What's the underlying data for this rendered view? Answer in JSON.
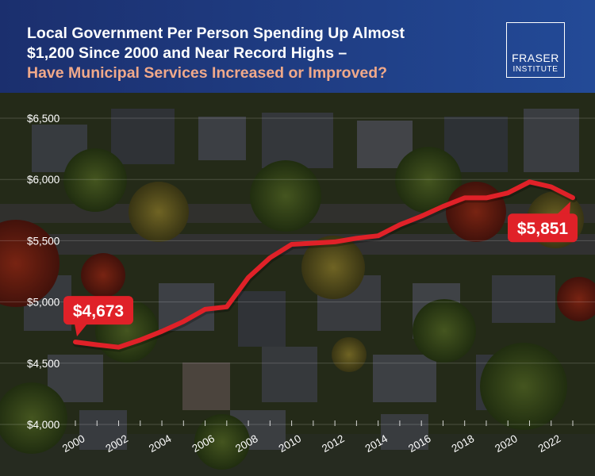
{
  "header": {
    "title_line1": "Local Government Per Person Spending Up Almost",
    "title_line2": "$1,200 Since 2000 and Near Record Highs –",
    "title_line3": "Have Municipal Services Increased or Improved?",
    "accent_color": "#f0a98a",
    "background_color": "#1f3c84"
  },
  "logo": {
    "line1": "FRASER",
    "line2": "INSTITUTE"
  },
  "chart_data": {
    "type": "line",
    "title": "",
    "xlabel": "",
    "ylabel": "",
    "ylim": [
      4000,
      6500
    ],
    "xlim": [
      2000,
      2023
    ],
    "y_ticks": [
      {
        "value": 4000,
        "label": "$4,000"
      },
      {
        "value": 4500,
        "label": "$4,500"
      },
      {
        "value": 5000,
        "label": "$5,000"
      },
      {
        "value": 5500,
        "label": "$5,500"
      },
      {
        "value": 6000,
        "label": "$6,000"
      },
      {
        "value": 6500,
        "label": "$6,500"
      }
    ],
    "x_ticks": [
      {
        "value": 2000,
        "label": "2000"
      },
      {
        "value": 2002,
        "label": "2002"
      },
      {
        "value": 2004,
        "label": "2004"
      },
      {
        "value": 2006,
        "label": "2006"
      },
      {
        "value": 2008,
        "label": "2008"
      },
      {
        "value": 2010,
        "label": "2010"
      },
      {
        "value": 2012,
        "label": "2012"
      },
      {
        "value": 2014,
        "label": "2014"
      },
      {
        "value": 2016,
        "label": "2016"
      },
      {
        "value": 2018,
        "label": "2018"
      },
      {
        "value": 2020,
        "label": "2020"
      },
      {
        "value": 2022,
        "label": "2022"
      }
    ],
    "series": [
      {
        "color": "#e02128",
        "x": [
          2000,
          2001,
          2002,
          2003,
          2004,
          2005,
          2006,
          2007,
          2008,
          2009,
          2010,
          2011,
          2012,
          2013,
          2014,
          2015,
          2016,
          2017,
          2018,
          2019,
          2020,
          2021,
          2022,
          2023
        ],
        "values": [
          4673,
          4650,
          4630,
          4690,
          4760,
          4840,
          4940,
          4960,
          5200,
          5360,
          5470,
          5480,
          5490,
          5520,
          5540,
          5630,
          5700,
          5780,
          5850,
          5850,
          5890,
          5980,
          5940,
          5851
        ]
      }
    ],
    "annotations": [
      {
        "x": 2000,
        "y": 4673,
        "label": "$4,673",
        "placement": "above"
      },
      {
        "x": 2023,
        "y": 5851,
        "label": "$5,851",
        "placement": "below"
      }
    ],
    "grid": true,
    "legend": "none"
  }
}
